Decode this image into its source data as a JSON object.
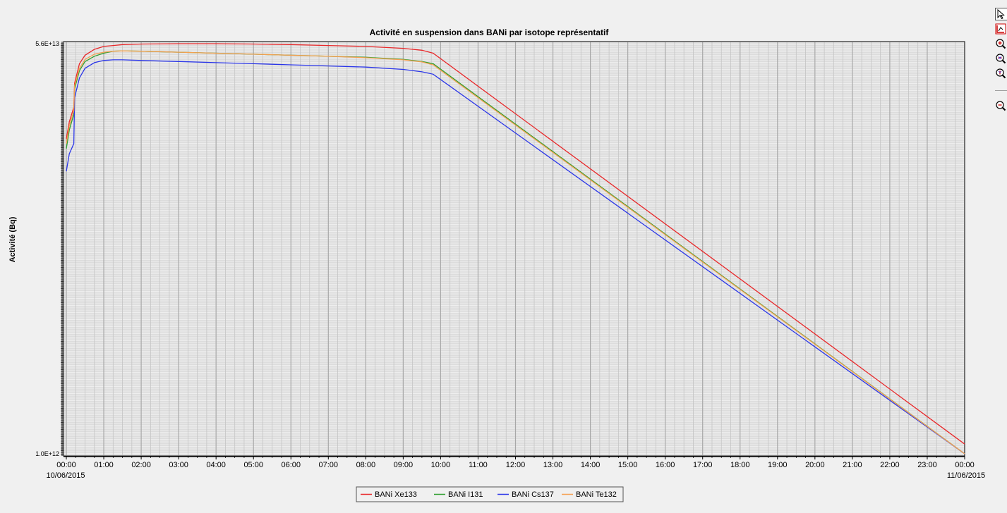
{
  "chart_data": {
    "type": "line",
    "title": "Activité en suspension dans BANi par isotope représentatif",
    "ylabel": "Activité (Bq)",
    "xlabel": "",
    "y_scale": "log",
    "ylim": [
      1000000000000.0,
      56000000000000.0
    ],
    "grid": true,
    "legend_position": "bottom-center",
    "x_ticks": [
      "00:00",
      "01:00",
      "02:00",
      "03:00",
      "04:00",
      "05:00",
      "06:00",
      "07:00",
      "08:00",
      "09:00",
      "10:00",
      "11:00",
      "12:00",
      "13:00",
      "14:00",
      "15:00",
      "16:00",
      "17:00",
      "18:00",
      "19:00",
      "20:00",
      "21:00",
      "22:00",
      "23:00",
      "00:00"
    ],
    "x_dates": {
      "start": "10/06/2015",
      "end": "11/06/2015"
    },
    "y_top_tick": "5.6E+13",
    "y_bottom_tick": "1.0E+12",
    "x_hours": [
      0,
      0.08,
      0.2,
      0.22,
      0.35,
      0.5,
      0.75,
      1.0,
      1.25,
      1.5,
      2,
      3,
      4,
      5,
      6,
      7,
      8,
      9,
      9.5,
      9.8,
      24
    ],
    "series": [
      {
        "name": "BANi Xe133",
        "color": "#e8282a",
        "values": [
          22000000000000.0,
          26000000000000.0,
          30000000000000.0,
          38000000000000.0,
          46000000000000.0,
          50000000000000.0,
          53000000000000.0,
          54500000000000.0,
          55000000000000.0,
          55500000000000.0,
          55800000000000.0,
          56000000000000.0,
          56000000000000.0,
          55800000000000.0,
          55500000000000.0,
          55000000000000.0,
          54500000000000.0,
          53500000000000.0,
          52500000000000.0,
          51000000000000.0,
          1100000000000.0
        ]
      },
      {
        "name": "BANi I131",
        "color": "#2e9e2e",
        "values": [
          20000000000000.0,
          24000000000000.0,
          28000000000000.0,
          36000000000000.0,
          43000000000000.0,
          47000000000000.0,
          49500000000000.0,
          51000000000000.0,
          52000000000000.0,
          52200000000000.0,
          52000000000000.0,
          51500000000000.0,
          51000000000000.0,
          50500000000000.0,
          50000000000000.0,
          49500000000000.0,
          49000000000000.0,
          48000000000000.0,
          47000000000000.0,
          46000000000000.0,
          1000000000000.0
        ]
      },
      {
        "name": "BANi Cs137",
        "color": "#2a35e8",
        "values": [
          16000000000000.0,
          19000000000000.0,
          21000000000000.0,
          33000000000000.0,
          40000000000000.0,
          44000000000000.0,
          46500000000000.0,
          47500000000000.0,
          47800000000000.0,
          47800000000000.0,
          47500000000000.0,
          47000000000000.0,
          46500000000000.0,
          46000000000000.0,
          45500000000000.0,
          45000000000000.0,
          44500000000000.0,
          43500000000000.0,
          42500000000000.0,
          41500000000000.0,
          1000000000000.0
        ]
      },
      {
        "name": "BANi Te132",
        "color": "#f5a050",
        "values": [
          21000000000000.0,
          25000000000000.0,
          29000000000000.0,
          37000000000000.0,
          44000000000000.0,
          48000000000000.0,
          50500000000000.0,
          51500000000000.0,
          52000000000000.0,
          52200000000000.0,
          52000000000000.0,
          51500000000000.0,
          51000000000000.0,
          50500000000000.0,
          50000000000000.0,
          49500000000000.0,
          48800000000000.0,
          47800000000000.0,
          46800000000000.0,
          45500000000000.0,
          1000000000000.0
        ]
      }
    ]
  },
  "legend_order": [
    "BANi Xe133",
    "BANi I131",
    "BANi Cs137",
    "BANi Te132"
  ],
  "toolbar": {
    "tools": [
      {
        "icon": "pointer-icon"
      },
      {
        "icon": "axis-scale-icon"
      },
      {
        "icon": "zoom-in-icon"
      },
      {
        "icon": "zoom-in-x-icon"
      },
      {
        "icon": "zoom-in-y-icon"
      },
      {
        "icon": "zoom-out-icon"
      }
    ]
  }
}
